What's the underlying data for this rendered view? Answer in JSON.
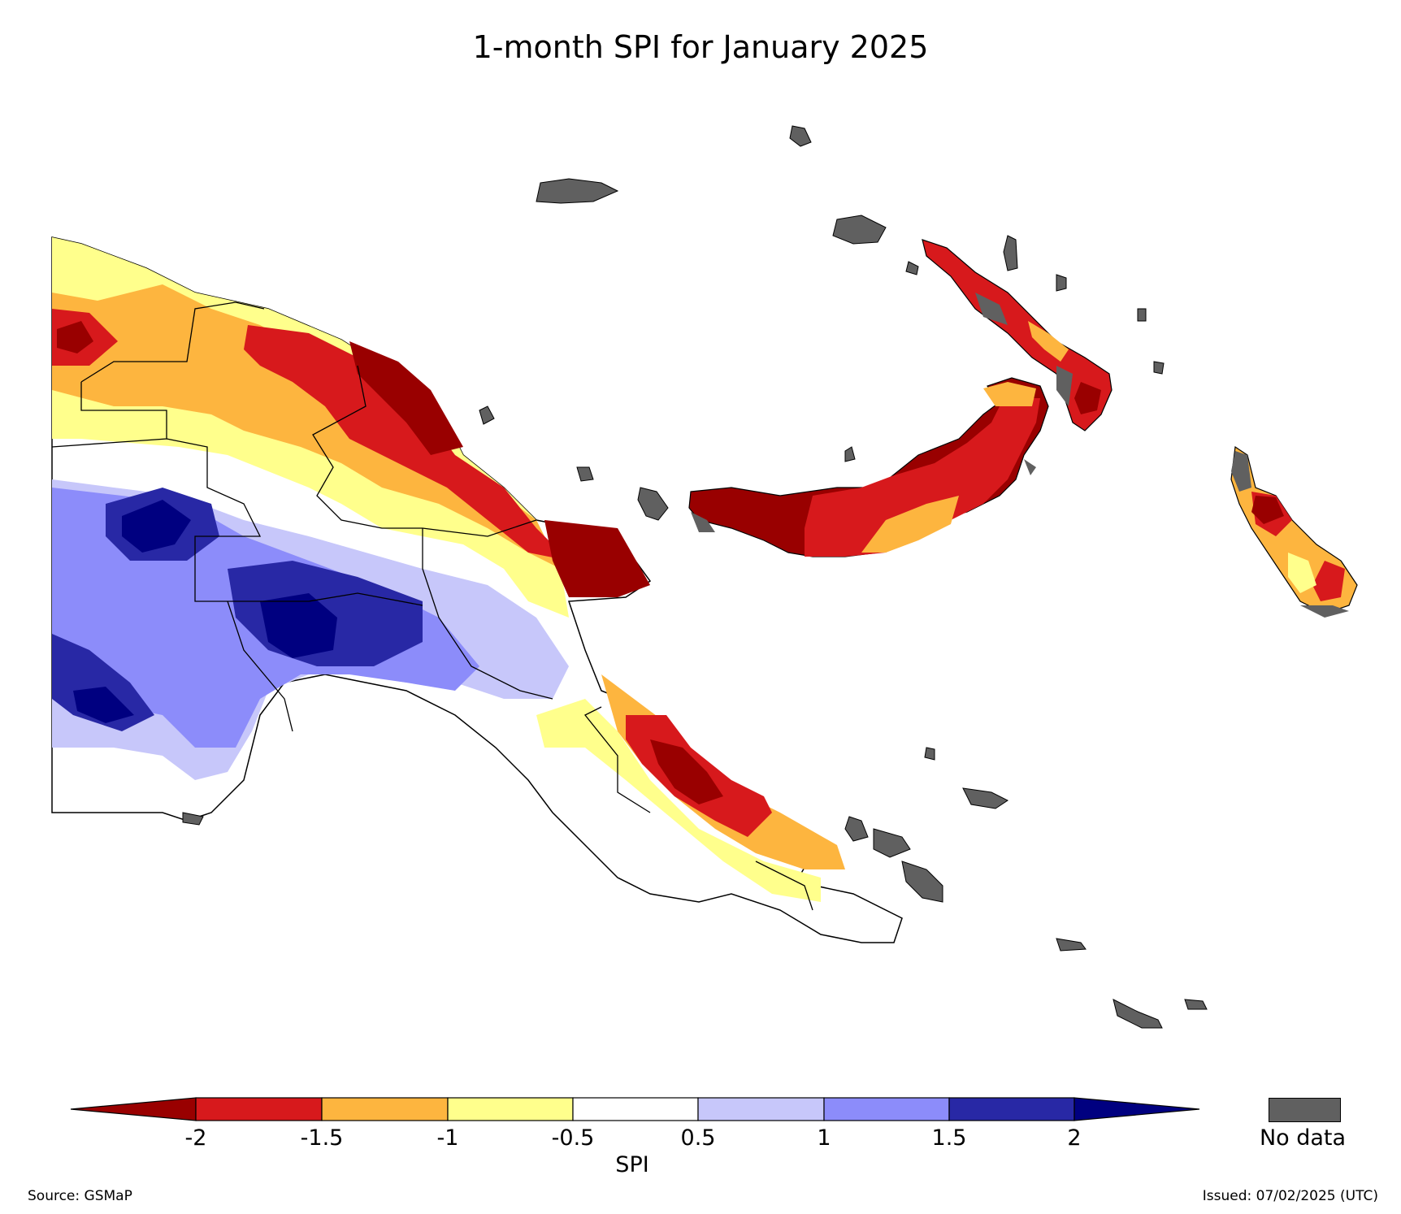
{
  "title": "1-month SPI for January 2025",
  "colorbar": {
    "label": "SPI",
    "ticks": [
      "-2",
      "-1.5",
      "-1",
      "-0.5",
      "0.5",
      "1",
      "1.5",
      "2"
    ],
    "colors": {
      "below_-2": "#990000",
      "-2_to_-1.5": "#d7191c",
      "-1.5_to_-1": "#fdb53f",
      "-1_to_-0.5": "#ffff8c",
      "-0.5_to_0.5": "#ffffff",
      "0.5_to_1": "#c7c7fa",
      "1_to_1.5": "#8c8cfa",
      "1.5_to_2": "#2828a5",
      "above_2": "#000080"
    }
  },
  "no_data": {
    "label": "No data",
    "color": "#606060"
  },
  "source": "Source: GSMaP",
  "issued": "Issued: 07/02/2025 (UTC)"
}
